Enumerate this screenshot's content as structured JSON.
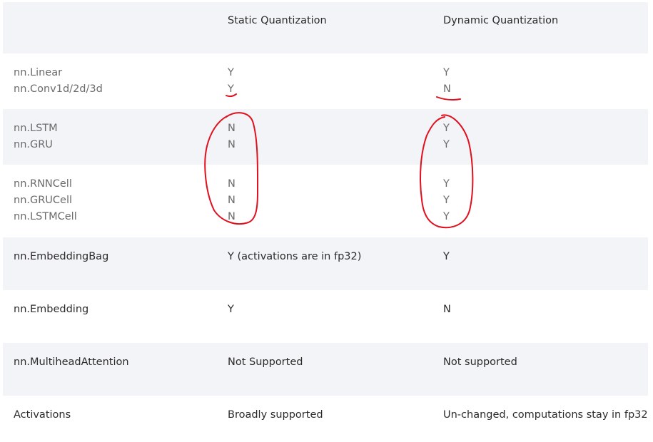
{
  "header": {
    "col1": "",
    "col2": "Static Quantization",
    "col3": "Dynamic Quantization"
  },
  "rows": [
    {
      "col1": [
        "nn.Linear",
        "nn.Conv1d/2d/3d"
      ],
      "col2": [
        "Y",
        "Y"
      ],
      "col3": [
        "Y",
        "N"
      ]
    },
    {
      "col1": [
        "nn.LSTM",
        "nn.GRU"
      ],
      "col2": [
        "N",
        "N"
      ],
      "col3": [
        "Y",
        "Y"
      ]
    },
    {
      "col1": [
        "nn.RNNCell",
        "nn.GRUCell",
        "nn.LSTMCell"
      ],
      "col2": [
        "N",
        "N",
        "N"
      ],
      "col3": [
        "Y",
        "Y",
        "Y"
      ]
    },
    {
      "col1": [
        "nn.EmbeddingBag"
      ],
      "col2": [
        "Y (activations are in fp32)"
      ],
      "col3": [
        "Y"
      ]
    },
    {
      "col1": [
        "nn.Embedding"
      ],
      "col2": [
        "Y"
      ],
      "col3": [
        "N"
      ]
    },
    {
      "col1": [
        "nn.MultiheadAttention"
      ],
      "col2": [
        "Not Supported"
      ],
      "col3": [
        "Not supported"
      ]
    },
    {
      "col1": [
        "Activations"
      ],
      "col2": [
        "Broadly supported"
      ],
      "col3": [
        "Un-changed, computations stay in fp32"
      ]
    }
  ],
  "annotation_color": "#e0101e"
}
